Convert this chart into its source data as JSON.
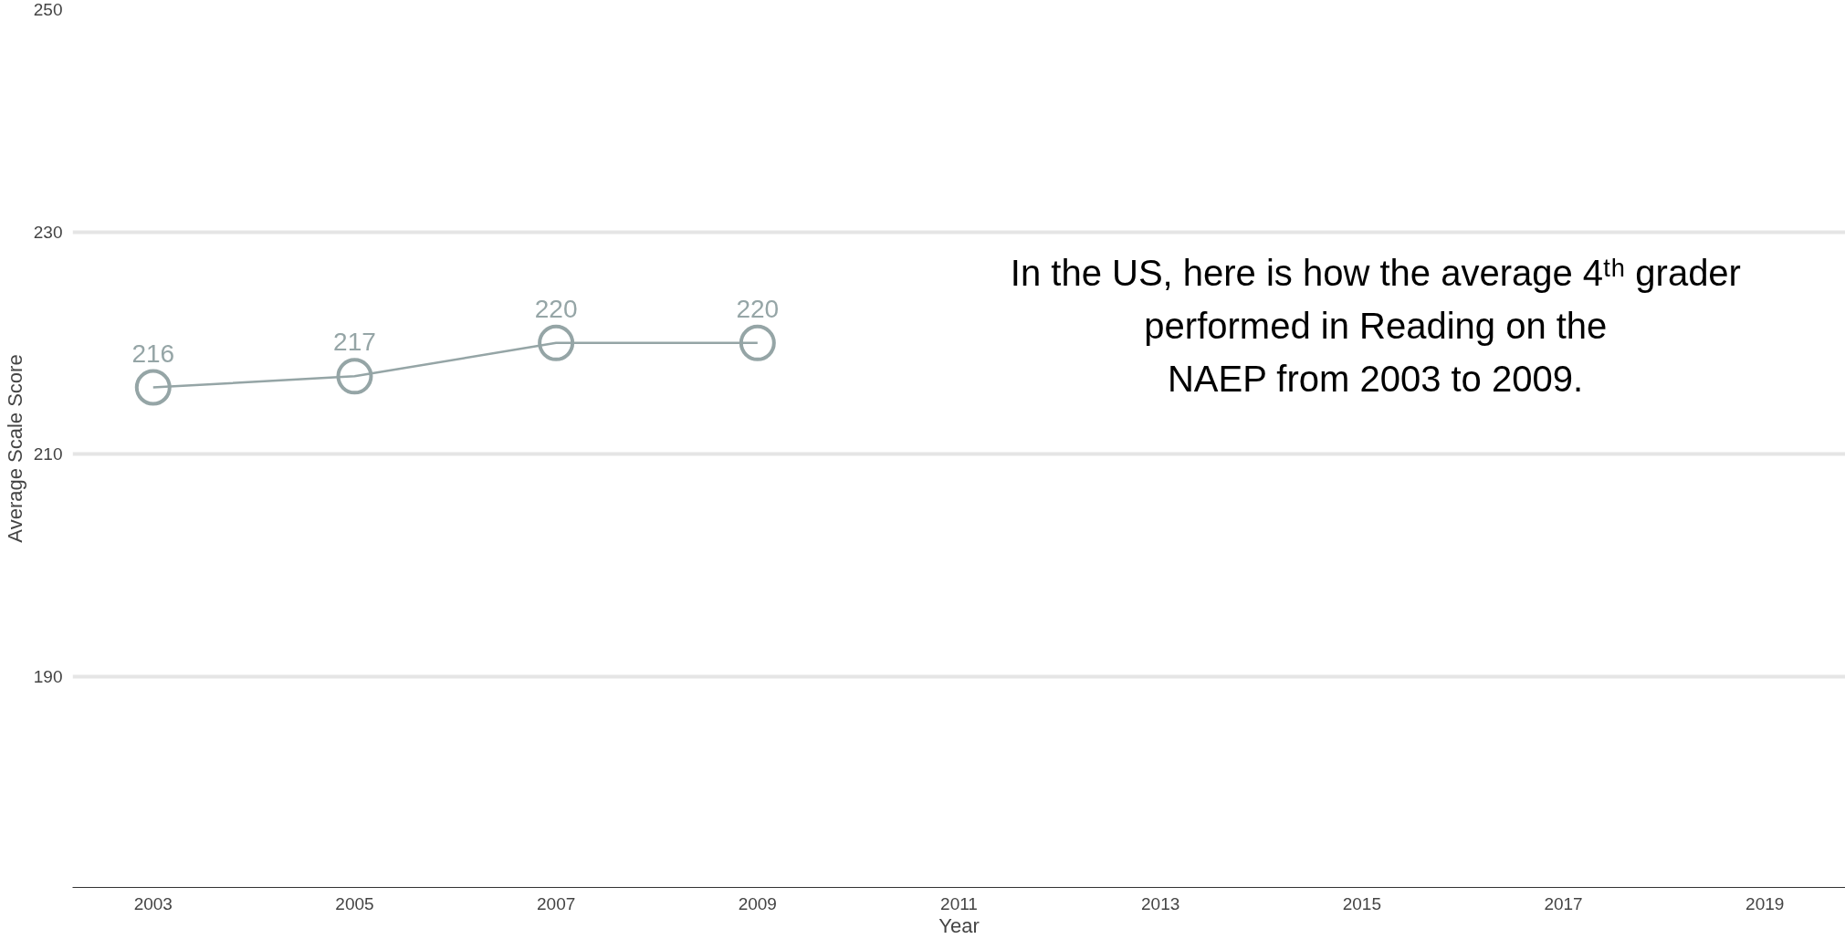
{
  "chart_data": {
    "type": "line",
    "xlabel": "Year",
    "ylabel": "Average Scale Score",
    "x": [
      2003,
      2005,
      2007,
      2009
    ],
    "series": [
      {
        "color": "#95a5a6",
        "values": [
          216,
          217,
          220,
          220
        ]
      }
    ],
    "marker": "circle",
    "data_labels": true,
    "grid": "y",
    "xlim": [
      2002.2,
      2019.8
    ],
    "xticks": [
      2003,
      2005,
      2007,
      2009,
      2011,
      2013,
      2015,
      2017,
      2019
    ],
    "ylim": [
      171,
      250
    ],
    "yticks": [
      190,
      210,
      230,
      250
    ],
    "annotations": [
      "In the US, here is how the average 4ᵗʰ grader\nperformed in Reading on the\nNAEP from 2003 to 2009."
    ]
  }
}
